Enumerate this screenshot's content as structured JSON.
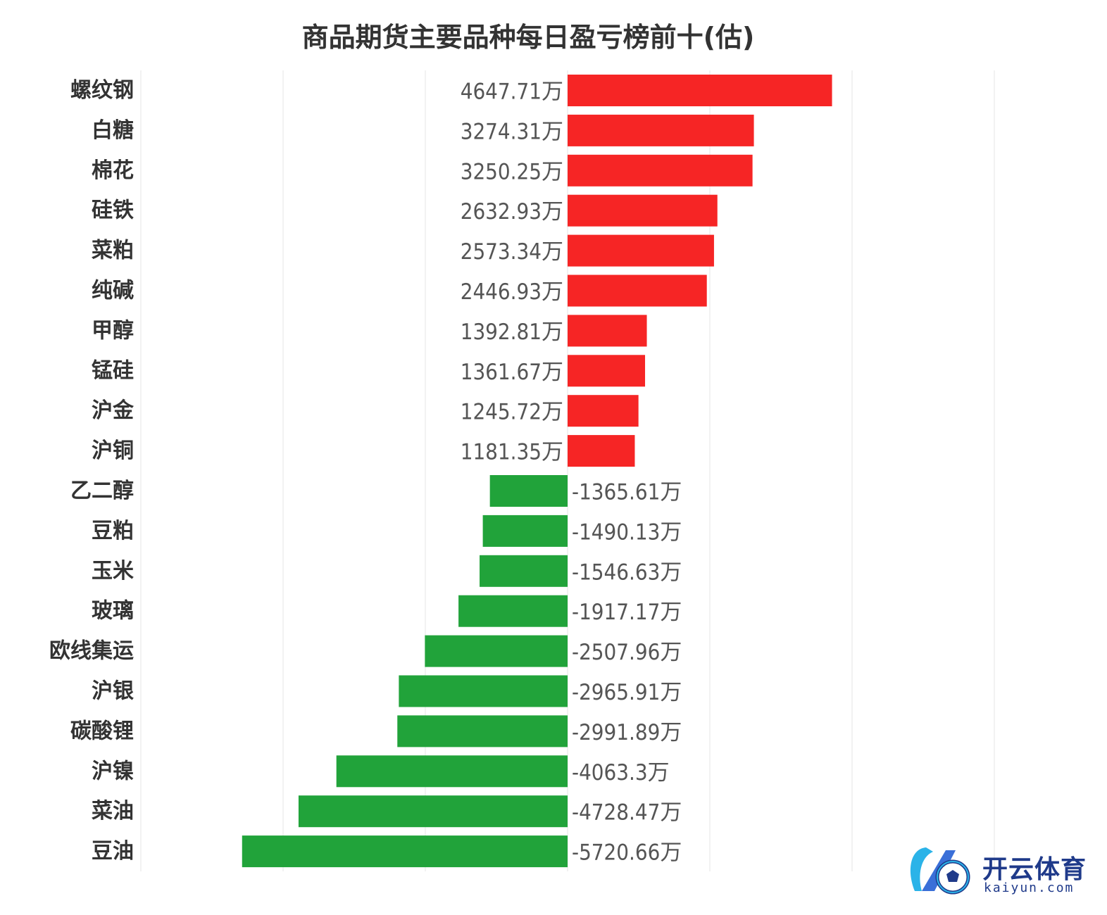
{
  "chart_data": {
    "type": "bar",
    "orientation": "horizontal",
    "title": "商品期货主要品种每日盈亏榜前十(估)",
    "unit_suffix": "万",
    "grid": true,
    "xlim": [
      -7500,
      7500
    ],
    "categories": [
      "螺纹钢",
      "白糖",
      "棉花",
      "硅铁",
      "菜粕",
      "纯碱",
      "甲醇",
      "锰硅",
      "沪金",
      "沪铜",
      "乙二醇",
      "豆粕",
      "玉米",
      "玻璃",
      "欧线集运",
      "沪银",
      "碳酸锂",
      "沪镍",
      "菜油",
      "豆油"
    ],
    "values": [
      4647.71,
      3274.31,
      3250.25,
      2632.93,
      2573.34,
      2446.93,
      1392.81,
      1361.67,
      1245.72,
      1181.35,
      -1365.61,
      -1490.13,
      -1546.63,
      -1917.17,
      -2507.96,
      -2965.91,
      -2991.89,
      -4063.3,
      -4728.47,
      -5720.66
    ],
    "value_labels": [
      "4647.71万",
      "3274.31万",
      "3250.25万",
      "2632.93万",
      "2573.34万",
      "2446.93万",
      "1392.81万",
      "1361.67万",
      "1245.72万",
      "1181.35万",
      "-1365.61万",
      "-1490.13万",
      "-1546.63万",
      "-1917.17万",
      "-2507.96万",
      "-2965.91万",
      "-2991.89万",
      "-4063.3万",
      "-4728.47万",
      "-5720.66万"
    ],
    "colors": {
      "positive": "#f62525",
      "negative": "#21a33a"
    }
  },
  "watermark": {
    "name": "开云体育",
    "domain": "kaiyun.com",
    "colors": {
      "primary": "#1f3a8a",
      "accent": "#2bb3e8"
    }
  }
}
